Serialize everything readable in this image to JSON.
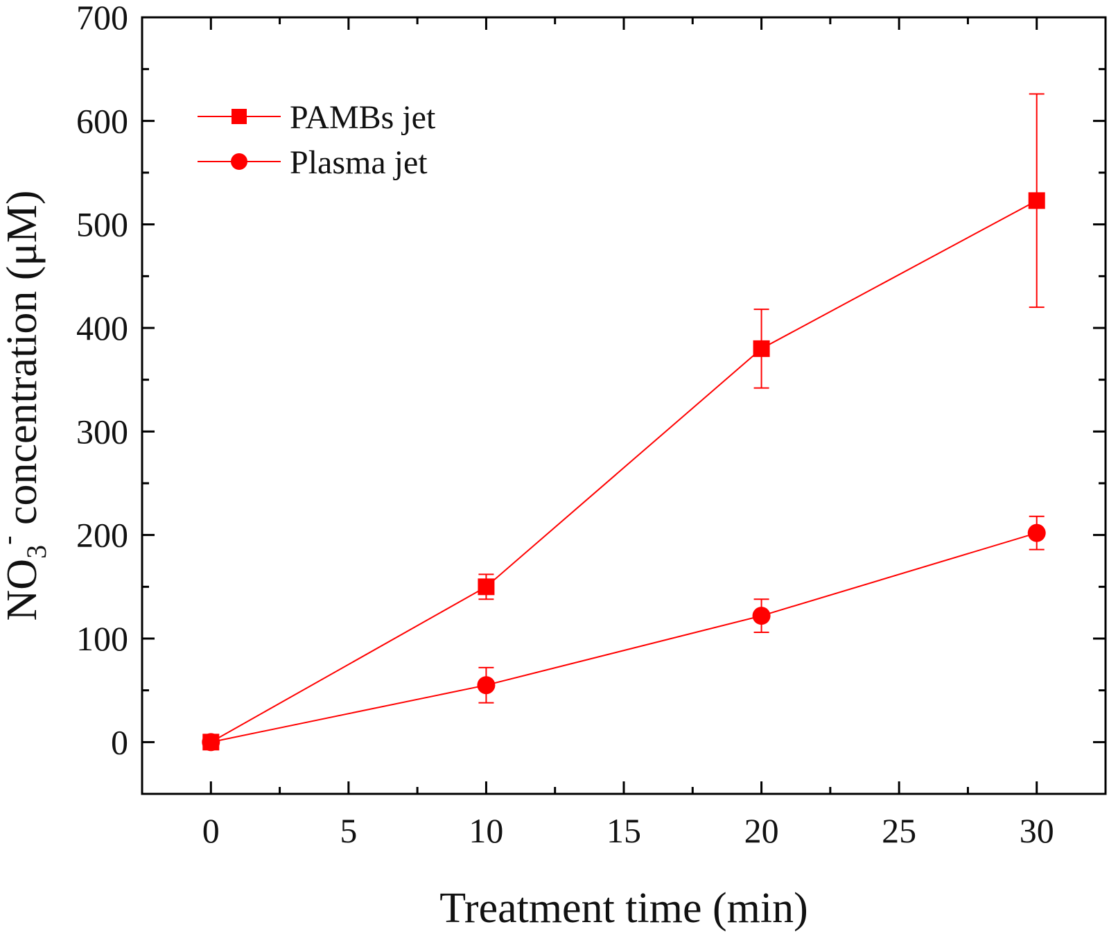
{
  "chart_data": {
    "type": "line",
    "x": [
      0,
      10,
      20,
      30
    ],
    "xlim": [
      -2.5,
      32.5
    ],
    "ylim": [
      -50,
      700
    ],
    "xticks": [
      0,
      5,
      10,
      15,
      20,
      25,
      30
    ],
    "yticks": [
      0,
      100,
      200,
      300,
      400,
      500,
      600,
      700
    ],
    "xlabel": "Treatment time (min)",
    "ylabel": {
      "main": "NO",
      "subscript": "3",
      "superscript": "-",
      "rest": " concentration (μM)"
    },
    "series": [
      {
        "name": "PAMBs jet",
        "marker": "square",
        "values": [
          0,
          150,
          380,
          523
        ],
        "errors": [
          5,
          12,
          38,
          103
        ]
      },
      {
        "name": "Plasma jet",
        "marker": "circle",
        "values": [
          0,
          55,
          122,
          202
        ],
        "errors": [
          5,
          17,
          16,
          16
        ]
      }
    ],
    "legend": "top-left",
    "grid": false,
    "color": "#ff0000"
  }
}
